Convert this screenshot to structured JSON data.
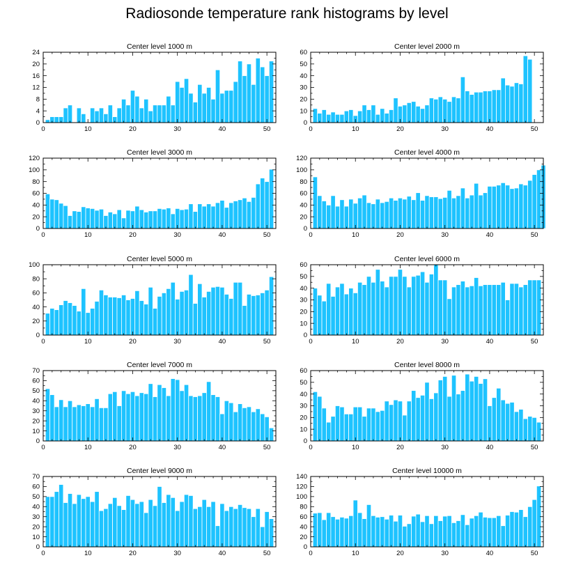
{
  "title": "Radiosonde temperature rank histograms by level",
  "chart_data": [
    {
      "type": "bar",
      "title": "Center level 1000 m",
      "xlim": [
        0,
        52
      ],
      "ylim": [
        0,
        24
      ],
      "xticks": [
        0,
        10,
        20,
        30,
        40,
        50
      ],
      "yticks": [
        0,
        4,
        8,
        12,
        16,
        20,
        24
      ],
      "values": [
        1,
        2,
        2,
        2,
        5,
        6,
        0,
        5,
        3,
        0,
        5,
        4,
        5,
        3,
        6,
        2,
        5,
        8,
        6,
        11,
        9,
        5,
        8,
        4,
        6,
        6,
        6,
        9,
        6,
        14,
        12,
        15,
        10,
        7,
        13,
        10,
        12,
        8,
        18,
        10,
        11,
        11,
        14,
        21,
        16,
        20,
        13,
        22,
        19,
        16,
        21
      ]
    },
    {
      "type": "bar",
      "title": "Center level 2000 m",
      "xlim": [
        0,
        52
      ],
      "ylim": [
        0,
        60
      ],
      "xticks": [
        0,
        10,
        20,
        30,
        40,
        50
      ],
      "yticks": [
        0,
        10,
        20,
        30,
        40,
        50,
        60
      ],
      "values": [
        12,
        8,
        11,
        7,
        9,
        7,
        7,
        10,
        11,
        6,
        10,
        15,
        11,
        15,
        7,
        12,
        8,
        11,
        21,
        14,
        15,
        17,
        18,
        14,
        12,
        15,
        21,
        20,
        22,
        20,
        18,
        22,
        21,
        39,
        27,
        24,
        26,
        26,
        27,
        27,
        28,
        28,
        38,
        32,
        31,
        34,
        33,
        57,
        54
      ]
    },
    {
      "type": "bar",
      "title": "Center level 3000 m",
      "xlim": [
        0,
        52
      ],
      "ylim": [
        0,
        120
      ],
      "xticks": [
        0,
        10,
        20,
        30,
        40,
        50
      ],
      "yticks": [
        0,
        20,
        40,
        60,
        80,
        100,
        120
      ],
      "values": [
        59,
        50,
        49,
        43,
        39,
        22,
        30,
        29,
        37,
        35,
        34,
        31,
        33,
        22,
        28,
        25,
        32,
        18,
        31,
        30,
        38,
        32,
        28,
        30,
        30,
        34,
        33,
        35,
        25,
        34,
        32,
        33,
        42,
        29,
        42,
        38,
        42,
        38,
        44,
        48,
        36,
        44,
        47,
        49,
        52,
        46,
        53,
        76,
        86,
        80,
        101
      ]
    },
    {
      "type": "bar",
      "title": "Center level 4000 m",
      "xlim": [
        0,
        52
      ],
      "ylim": [
        0,
        120
      ],
      "xticks": [
        0,
        10,
        20,
        30,
        40,
        50
      ],
      "yticks": [
        0,
        20,
        40,
        60,
        80,
        100,
        120
      ],
      "values": [
        88,
        56,
        47,
        40,
        56,
        38,
        49,
        38,
        50,
        43,
        52,
        57,
        44,
        42,
        50,
        44,
        46,
        52,
        48,
        52,
        50,
        55,
        49,
        61,
        48,
        56,
        54,
        54,
        51,
        53,
        65,
        52,
        56,
        69,
        52,
        57,
        77,
        57,
        61,
        72,
        72,
        74,
        78,
        74,
        68,
        69,
        76,
        74,
        82,
        92,
        100,
        108
      ]
    },
    {
      "type": "bar",
      "title": "Center level 5000 m",
      "xlim": [
        0,
        52
      ],
      "ylim": [
        0,
        100
      ],
      "xticks": [
        0,
        10,
        20,
        30,
        40,
        50
      ],
      "yticks": [
        0,
        20,
        40,
        60,
        80,
        100
      ],
      "values": [
        31,
        38,
        36,
        43,
        49,
        46,
        42,
        34,
        66,
        32,
        38,
        48,
        64,
        57,
        54,
        54,
        53,
        57,
        50,
        52,
        63,
        49,
        44,
        68,
        38,
        55,
        60,
        66,
        75,
        51,
        62,
        64,
        86,
        45,
        73,
        54,
        62,
        68,
        69,
        68,
        58,
        52,
        75,
        75,
        42,
        58,
        56,
        57,
        60,
        64,
        83
      ]
    },
    {
      "type": "bar",
      "title": "Center level 6000 m",
      "xlim": [
        0,
        52
      ],
      "ylim": [
        0,
        60
      ],
      "xticks": [
        0,
        10,
        20,
        30,
        40,
        50
      ],
      "yticks": [
        0,
        10,
        20,
        30,
        40,
        50,
        60
      ],
      "values": [
        40,
        34,
        29,
        44,
        33,
        41,
        44,
        35,
        40,
        36,
        45,
        43,
        50,
        45,
        56,
        46,
        41,
        50,
        50,
        56,
        50,
        41,
        50,
        51,
        54,
        45,
        52,
        60,
        47,
        47,
        31,
        41,
        43,
        46,
        41,
        42,
        49,
        42,
        43,
        43,
        43,
        43,
        45,
        30,
        44,
        44,
        41,
        43,
        47,
        47,
        47
      ]
    },
    {
      "type": "bar",
      "title": "Center level 7000 m",
      "xlim": [
        0,
        52
      ],
      "ylim": [
        0,
        70
      ],
      "xticks": [
        0,
        10,
        20,
        30,
        40,
        50
      ],
      "yticks": [
        0,
        10,
        20,
        30,
        40,
        50,
        60,
        70
      ],
      "values": [
        52,
        46,
        34,
        41,
        34,
        40,
        34,
        36,
        35,
        37,
        34,
        42,
        33,
        33,
        47,
        49,
        35,
        50,
        47,
        49,
        45,
        48,
        47,
        57,
        44,
        56,
        53,
        45,
        62,
        61,
        50,
        56,
        45,
        44,
        45,
        48,
        59,
        46,
        44,
        27,
        40,
        38,
        29,
        37,
        33,
        34,
        29,
        32,
        27,
        24,
        13
      ]
    },
    {
      "type": "bar",
      "title": "Center level 8000 m",
      "xlim": [
        0,
        52
      ],
      "ylim": [
        0,
        60
      ],
      "xticks": [
        0,
        10,
        20,
        30,
        40,
        50
      ],
      "yticks": [
        0,
        10,
        20,
        30,
        40,
        50,
        60
      ],
      "values": [
        42,
        38,
        28,
        16,
        21,
        30,
        29,
        23,
        23,
        29,
        29,
        21,
        28,
        28,
        25,
        26,
        34,
        31,
        35,
        34,
        22,
        34,
        43,
        37,
        39,
        50,
        36,
        41,
        52,
        55,
        38,
        56,
        40,
        43,
        57,
        51,
        55,
        49,
        53,
        30,
        37,
        45,
        35,
        32,
        33,
        25,
        27,
        19,
        21,
        20,
        16
      ]
    },
    {
      "type": "bar",
      "title": "Center level 9000 m",
      "xlim": [
        0,
        52
      ],
      "ylim": [
        0,
        70
      ],
      "xticks": [
        0,
        10,
        20,
        30,
        40,
        50
      ],
      "yticks": [
        0,
        10,
        20,
        30,
        40,
        50,
        60,
        70
      ],
      "values": [
        50,
        50,
        55,
        62,
        44,
        53,
        43,
        52,
        48,
        50,
        45,
        55,
        36,
        38,
        43,
        49,
        41,
        37,
        51,
        47,
        43,
        45,
        34,
        47,
        41,
        60,
        44,
        52,
        49,
        36,
        45,
        52,
        51,
        38,
        40,
        47,
        40,
        45,
        21,
        43,
        36,
        40,
        38,
        42,
        39,
        38,
        30,
        38,
        20,
        35,
        28
      ]
    },
    {
      "type": "bar",
      "title": "Center level 10000 m",
      "xlim": [
        0,
        52
      ],
      "ylim": [
        0,
        140
      ],
      "xticks": [
        0,
        10,
        20,
        30,
        40,
        50
      ],
      "yticks": [
        0,
        20,
        40,
        60,
        80,
        100,
        120,
        140
      ],
      "values": [
        67,
        68,
        54,
        68,
        60,
        55,
        59,
        57,
        62,
        93,
        68,
        56,
        84,
        62,
        59,
        60,
        55,
        63,
        51,
        63,
        41,
        46,
        61,
        65,
        50,
        62,
        46,
        62,
        52,
        61,
        62,
        48,
        52,
        64,
        44,
        57,
        62,
        69,
        59,
        58,
        58,
        62,
        42,
        63,
        70,
        69,
        74,
        60,
        80,
        94,
        121
      ]
    }
  ]
}
